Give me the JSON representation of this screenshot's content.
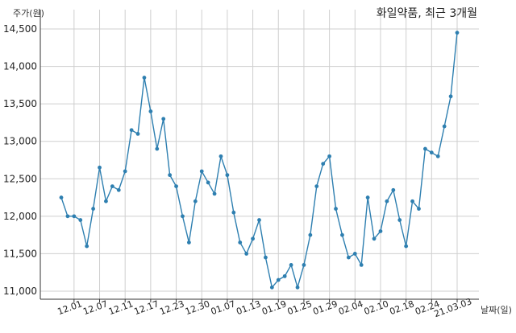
{
  "chart_data": {
    "type": "line",
    "title": "화일약품, 최근 3개월",
    "ylabel": "주가(원)",
    "xlabel": "날짜(일)",
    "ylim": [
      11000,
      14500
    ],
    "grid": true,
    "line_color": "#2e7fb0",
    "y_ticks": [
      11000,
      11500,
      12000,
      12500,
      13000,
      13500,
      14000,
      14500
    ],
    "y_tick_labels": [
      "11,000",
      "11,500",
      "12,000",
      "12,500",
      "13,000",
      "13,500",
      "14,000",
      "14,500"
    ],
    "x_tick_labels": [
      "12.01",
      "12.07",
      "12.11",
      "12.17",
      "12.23",
      "12.30",
      "01.07",
      "01.13",
      "01.19",
      "01.25",
      "01.29",
      "02.04",
      "02.10",
      "02.18",
      "02.24",
      "21.03.03"
    ],
    "x_tick_positions": [
      2,
      6,
      10,
      14,
      18,
      22,
      26,
      30,
      34,
      38,
      42,
      46,
      50,
      54,
      58,
      62
    ],
    "series": [
      {
        "values": [
          12250,
          12000,
          12000,
          11950,
          11600,
          12100,
          12650,
          12200,
          12400,
          12350,
          12600,
          13150,
          13100,
          13850,
          13400,
          12900,
          13300,
          12550,
          12400,
          12000,
          11650,
          12200,
          12600,
          12450,
          12300,
          12800,
          12550,
          12050,
          11650,
          11500,
          11700,
          11950,
          11450,
          11050,
          11150,
          11200,
          11350,
          11050,
          11350,
          11750,
          12400,
          12700,
          12800,
          12100,
          11750,
          11450,
          11500,
          11350,
          12250,
          11700,
          11800,
          12200,
          12350,
          11950,
          11600,
          12200,
          12100,
          12900,
          12850,
          12800,
          13200,
          13600,
          14450
        ]
      }
    ]
  }
}
